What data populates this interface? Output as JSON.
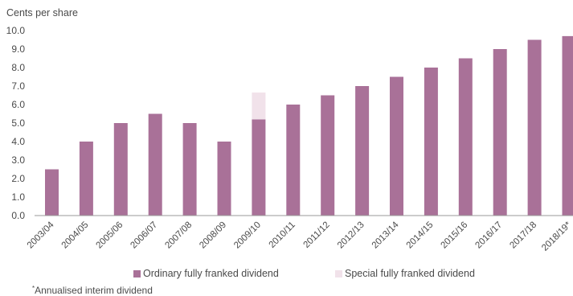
{
  "chart_data": {
    "type": "bar",
    "ylabel": "Cents per share",
    "ylim": [
      0,
      10
    ],
    "yticks": [
      "0.0",
      "1.0",
      "2.0",
      "3.0",
      "4.0",
      "5.0",
      "6.0",
      "7.0",
      "8.0",
      "9.0",
      "10.0"
    ],
    "categories": [
      "2003/04",
      "2004/05",
      "2005/06",
      "2006/07",
      "2007/08",
      "2008/09",
      "2009/10",
      "2010/11",
      "2011/12",
      "2012/13",
      "2013/14",
      "2014/15",
      "2015/16",
      "2016/17",
      "2017/18",
      "2018/19*"
    ],
    "series": [
      {
        "name": "Ordinary fully franked dividend",
        "color": "#a97198",
        "values": [
          2.5,
          4.0,
          5.0,
          5.5,
          5.0,
          4.0,
          5.2,
          6.0,
          6.5,
          7.0,
          7.5,
          8.0,
          8.5,
          9.0,
          9.5,
          9.7
        ]
      },
      {
        "name": "Special fully franked dividend",
        "color": "#f1e2ea",
        "values": [
          0,
          0,
          0,
          0,
          0,
          0,
          1.45,
          0,
          0,
          0,
          0,
          0,
          0,
          0,
          0,
          0
        ]
      }
    ],
    "stacked": true,
    "grid": false,
    "legend_position": "bottom"
  },
  "footnote": {
    "marker": "*",
    "text": "Annualised interim dividend"
  }
}
